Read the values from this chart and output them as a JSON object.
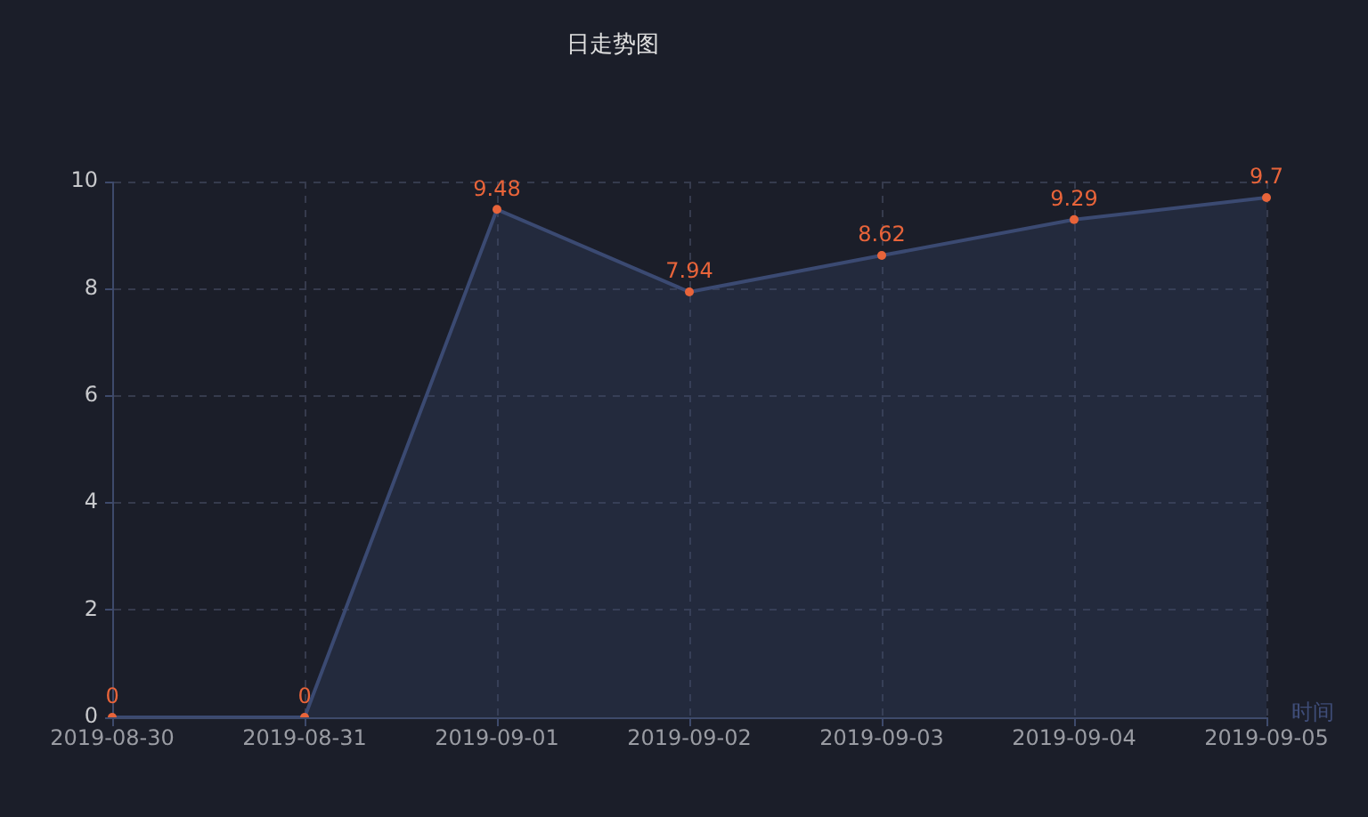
{
  "chart_data": {
    "type": "area",
    "title": "日走势图",
    "xlabel": "时间",
    "categories": [
      "2019-08-30",
      "2019-08-31",
      "2019-09-01",
      "2019-09-02",
      "2019-09-03",
      "2019-09-04",
      "2019-09-05"
    ],
    "series": [
      {
        "color": "#3b4a72",
        "values": [
          0,
          0,
          9.48,
          7.94,
          8.62,
          9.29,
          9.7
        ]
      }
    ],
    "ylim": [
      0,
      10
    ],
    "yticks": [
      0,
      2,
      4,
      6,
      8,
      10
    ],
    "grid": true,
    "data_labels": true,
    "marker": "circle"
  }
}
